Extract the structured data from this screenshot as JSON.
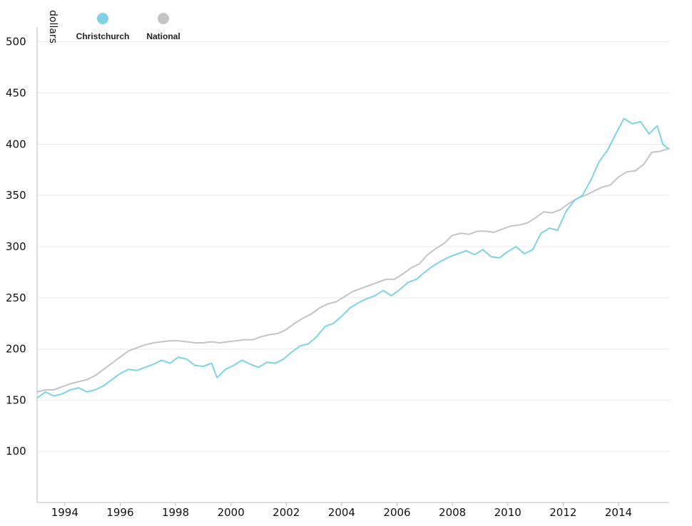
{
  "chart_data": {
    "type": "line",
    "ylabel": "dollars",
    "xlabel": "",
    "xlim": [
      1993.0,
      2015.83
    ],
    "ylim": [
      50,
      520
    ],
    "y_ticks": [
      100,
      150,
      200,
      250,
      300,
      350,
      400,
      450,
      500
    ],
    "x_ticks": [
      1994,
      1996,
      1998,
      2000,
      2002,
      2004,
      2006,
      2008,
      2010,
      2012,
      2014
    ],
    "grid": true,
    "legend_position": "top-left",
    "series": [
      {
        "name": "Christchurch",
        "color": "#7dd3e3",
        "points": [
          [
            1993.0,
            152
          ],
          [
            1993.3,
            158
          ],
          [
            1993.6,
            154
          ],
          [
            1993.9,
            156
          ],
          [
            1994.2,
            160
          ],
          [
            1994.5,
            162
          ],
          [
            1994.8,
            158
          ],
          [
            1995.1,
            160
          ],
          [
            1995.4,
            164
          ],
          [
            1995.7,
            170
          ],
          [
            1996.0,
            176
          ],
          [
            1996.3,
            180
          ],
          [
            1996.6,
            179
          ],
          [
            1996.9,
            182
          ],
          [
            1997.2,
            185
          ],
          [
            1997.5,
            189
          ],
          [
            1997.8,
            186
          ],
          [
            1998.1,
            192
          ],
          [
            1998.4,
            190
          ],
          [
            1998.7,
            184
          ],
          [
            1999.0,
            183
          ],
          [
            1999.3,
            186
          ],
          [
            1999.5,
            172
          ],
          [
            1999.8,
            180
          ],
          [
            2000.1,
            184
          ],
          [
            2000.4,
            189
          ],
          [
            2000.7,
            185
          ],
          [
            2001.0,
            182
          ],
          [
            2001.3,
            187
          ],
          [
            2001.6,
            186
          ],
          [
            2001.9,
            190
          ],
          [
            2002.2,
            197
          ],
          [
            2002.5,
            203
          ],
          [
            2002.8,
            205
          ],
          [
            2003.1,
            212
          ],
          [
            2003.4,
            222
          ],
          [
            2003.7,
            225
          ],
          [
            2004.0,
            232
          ],
          [
            2004.3,
            240
          ],
          [
            2004.6,
            245
          ],
          [
            2004.9,
            249
          ],
          [
            2005.2,
            252
          ],
          [
            2005.5,
            257
          ],
          [
            2005.8,
            252
          ],
          [
            2006.1,
            258
          ],
          [
            2006.4,
            265
          ],
          [
            2006.7,
            268
          ],
          [
            2007.0,
            275
          ],
          [
            2007.3,
            281
          ],
          [
            2007.6,
            286
          ],
          [
            2007.9,
            290
          ],
          [
            2008.2,
            293
          ],
          [
            2008.5,
            296
          ],
          [
            2008.8,
            292
          ],
          [
            2009.1,
            297
          ],
          [
            2009.4,
            290
          ],
          [
            2009.7,
            289
          ],
          [
            2010.0,
            295
          ],
          [
            2010.3,
            300
          ],
          [
            2010.6,
            293
          ],
          [
            2010.9,
            297
          ],
          [
            2011.2,
            313
          ],
          [
            2011.5,
            318
          ],
          [
            2011.8,
            316
          ],
          [
            2012.1,
            334
          ],
          [
            2012.4,
            345
          ],
          [
            2012.7,
            350
          ],
          [
            2013.0,
            365
          ],
          [
            2013.3,
            383
          ],
          [
            2013.6,
            394
          ],
          [
            2013.9,
            410
          ],
          [
            2014.2,
            425
          ],
          [
            2014.5,
            420
          ],
          [
            2014.8,
            422
          ],
          [
            2015.1,
            410
          ],
          [
            2015.4,
            418
          ],
          [
            2015.6,
            400
          ],
          [
            2015.83,
            395
          ]
        ]
      },
      {
        "name": "National",
        "color": "#c4c4c4",
        "points": [
          [
            1993.0,
            158
          ],
          [
            1993.3,
            160
          ],
          [
            1993.6,
            160
          ],
          [
            1993.9,
            163
          ],
          [
            1994.2,
            166
          ],
          [
            1994.5,
            168
          ],
          [
            1994.8,
            170
          ],
          [
            1995.1,
            174
          ],
          [
            1995.4,
            180
          ],
          [
            1995.7,
            186
          ],
          [
            1996.0,
            192
          ],
          [
            1996.3,
            198
          ],
          [
            1996.6,
            201
          ],
          [
            1996.9,
            204
          ],
          [
            1997.2,
            206
          ],
          [
            1997.5,
            207
          ],
          [
            1997.8,
            208
          ],
          [
            1998.1,
            208
          ],
          [
            1998.4,
            207
          ],
          [
            1998.7,
            206
          ],
          [
            1999.0,
            206
          ],
          [
            1999.3,
            207
          ],
          [
            1999.6,
            206
          ],
          [
            1999.9,
            207
          ],
          [
            2000.2,
            208
          ],
          [
            2000.5,
            209
          ],
          [
            2000.8,
            209
          ],
          [
            2001.1,
            212
          ],
          [
            2001.4,
            214
          ],
          [
            2001.7,
            215
          ],
          [
            2002.0,
            219
          ],
          [
            2002.3,
            225
          ],
          [
            2002.6,
            230
          ],
          [
            2002.9,
            234
          ],
          [
            2003.2,
            240
          ],
          [
            2003.5,
            244
          ],
          [
            2003.8,
            246
          ],
          [
            2004.1,
            251
          ],
          [
            2004.4,
            256
          ],
          [
            2004.7,
            259
          ],
          [
            2005.0,
            262
          ],
          [
            2005.3,
            265
          ],
          [
            2005.6,
            268
          ],
          [
            2005.9,
            268
          ],
          [
            2006.2,
            273
          ],
          [
            2006.5,
            279
          ],
          [
            2006.8,
            283
          ],
          [
            2007.1,
            292
          ],
          [
            2007.4,
            298
          ],
          [
            2007.7,
            303
          ],
          [
            2008.0,
            311
          ],
          [
            2008.3,
            313
          ],
          [
            2008.6,
            312
          ],
          [
            2008.9,
            315
          ],
          [
            2009.2,
            315
          ],
          [
            2009.5,
            314
          ],
          [
            2009.8,
            317
          ],
          [
            2010.1,
            320
          ],
          [
            2010.4,
            321
          ],
          [
            2010.7,
            323
          ],
          [
            2011.0,
            328
          ],
          [
            2011.3,
            334
          ],
          [
            2011.6,
            333
          ],
          [
            2011.9,
            336
          ],
          [
            2012.2,
            342
          ],
          [
            2012.5,
            347
          ],
          [
            2012.8,
            350
          ],
          [
            2013.1,
            354
          ],
          [
            2013.4,
            358
          ],
          [
            2013.7,
            360
          ],
          [
            2014.0,
            368
          ],
          [
            2014.3,
            373
          ],
          [
            2014.6,
            374
          ],
          [
            2014.9,
            380
          ],
          [
            2015.2,
            392
          ],
          [
            2015.5,
            393
          ],
          [
            2015.83,
            396
          ]
        ]
      }
    ]
  }
}
